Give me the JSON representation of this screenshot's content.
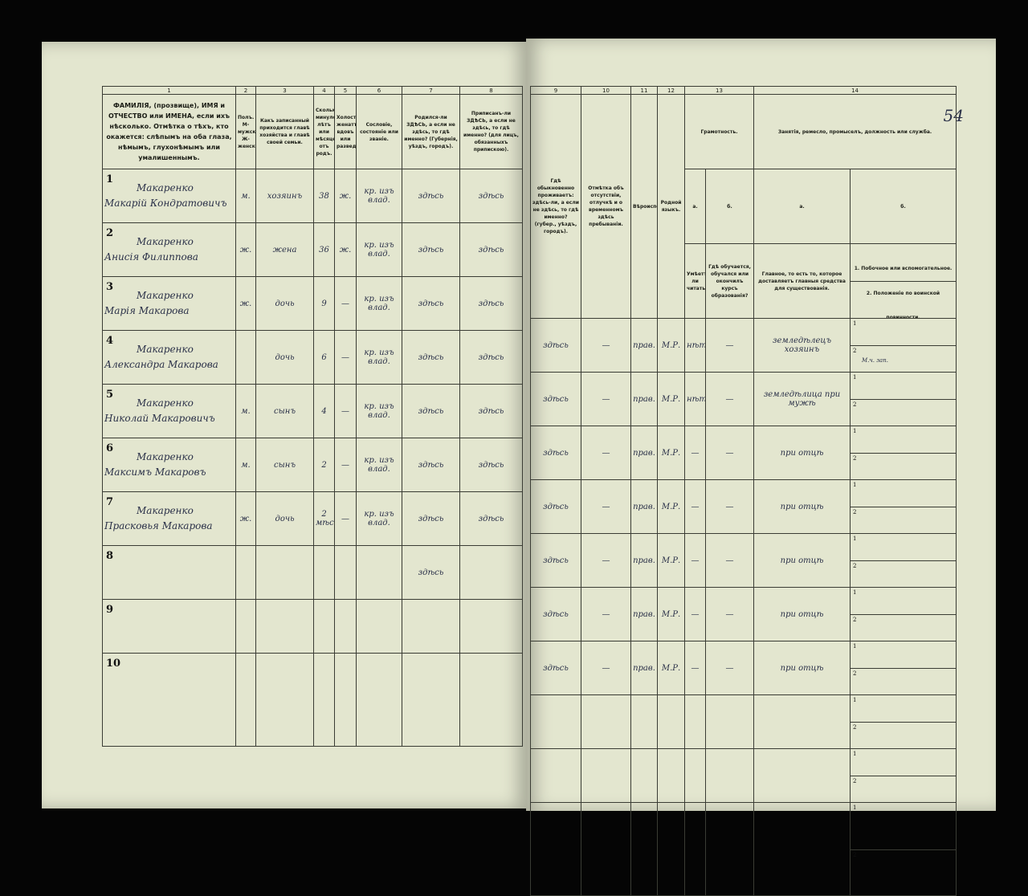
{
  "page_number": "54",
  "left_headers": {
    "numbers": [
      "1",
      "2",
      "3",
      "4",
      "5",
      "6",
      "7",
      "8"
    ],
    "labels": [
      "ФАМИЛІЯ, (прозвище), ИМЯ и ОТЧЕСТВО или ИМЕНА, если ихъ нѣсколько. Отмѣтка о тѣхъ, кто окажется: слѣпымъ на оба глаза, нѣмымъ, глухонѣмымъ или умалишеннымъ.",
      "Полъ. М-мужской. Ж-женскій.",
      "Какъ записанный приходится главѣ хозяйства и главѣ своей семьи.",
      "Сколько минуло лѣтъ или мѣсяцевъ отъ родъ.",
      "Холостъ, женатъ, вдовъ или разведенъ.",
      "Сословіе, состояніе или званіе.",
      "Родился-ли ЗДѢСЬ, а если не здѣсь, то гдѣ именно? (Губернія, уѣздъ, городъ).",
      "Приписанъ-ли ЗДѢСЬ, а если не здѣсь, то гдѣ именно? (для лицъ, обязанныхъ припискою)."
    ]
  },
  "right_headers": {
    "numbers": [
      "9",
      "10",
      "11",
      "12",
      "13",
      "14"
    ],
    "col9": "Гдѣ обыкновенно проживаетъ: здѣсь-ли, а если не здѣсь, то гдѣ именно? (губер., уѣздъ, городъ).",
    "col10": "Отмѣтка объ отсутствіи, отлучкѣ и о временномъ здѣсь пребываніи.",
    "col11": "Вѣроисповѣданіе.",
    "col12": "Родной языкъ.",
    "col13": "Грамотность.",
    "col13a": "а.",
    "col13a_text": "Умѣетъ-ли читать?",
    "col13b": "б.",
    "col13b_text": "Гдѣ обучается, обучался или окончилъ курсъ образованія?",
    "col14": "Занятія, ремесло, промыселъ, должность или служба.",
    "col14a": "а.",
    "col14a_text": "Главное, то есть то, которое доставляетъ главныя средства для существованія.",
    "col14b": "б.",
    "col14b_1": "1. Побочное или вспомогательное.",
    "col14b_2": "2. Положеніе по воинской повинности."
  },
  "rows": [
    {
      "n": "1",
      "surname": "Макаренко",
      "name": "Макарій Кондратовичъ",
      "sex": "м.",
      "relation": "хозяинъ",
      "age": "38",
      "marital": "ж.",
      "estate": "кр. изъ влад.",
      "born": "здѣсь",
      "registered": "здѣсь",
      "resides": "здѣсь",
      "absence": "—",
      "religion": "прав.",
      "language": "М.Р.",
      "literate": "нѣтъ",
      "school": "—",
      "occupation": "земледѣлецъ хозяинъ",
      "side": "",
      "military": "М.ч. зап."
    },
    {
      "n": "2",
      "surname": "Макаренко",
      "name": "Анисія Филиппова",
      "sex": "ж.",
      "relation": "жена",
      "age": "36",
      "marital": "ж.",
      "estate": "кр. изъ влад.",
      "born": "здѣсь",
      "registered": "здѣсь",
      "resides": "здѣсь",
      "absence": "—",
      "religion": "прав.",
      "language": "М.Р.",
      "literate": "нѣтъ",
      "school": "—",
      "occupation": "земледѣлица при мужѣ",
      "side": "",
      "military": ""
    },
    {
      "n": "3",
      "surname": "Макаренко",
      "name": "Марія Макарова",
      "sex": "ж.",
      "relation": "дочь",
      "age": "9",
      "marital": "—",
      "estate": "кр. изъ влад.",
      "born": "здѣсь",
      "registered": "здѣсь",
      "resides": "здѣсь",
      "absence": "—",
      "religion": "прав.",
      "language": "М.Р.",
      "literate": "—",
      "school": "—",
      "occupation": "при отцѣ",
      "side": "",
      "military": ""
    },
    {
      "n": "4",
      "surname": "Макаренко",
      "name": "Александра Макарова",
      "sex": "",
      "relation": "дочь",
      "age": "6",
      "marital": "—",
      "estate": "кр. изъ влад.",
      "born": "здѣсь",
      "registered": "здѣсь",
      "resides": "здѣсь",
      "absence": "—",
      "religion": "прав.",
      "language": "М.Р.",
      "literate": "—",
      "school": "—",
      "occupation": "при отцѣ",
      "side": "",
      "military": ""
    },
    {
      "n": "5",
      "surname": "Макаренко",
      "name": "Николай Макаровичъ",
      "sex": "м.",
      "relation": "сынъ",
      "age": "4",
      "marital": "—",
      "estate": "кр. изъ влад.",
      "born": "здѣсь",
      "registered": "здѣсь",
      "resides": "здѣсь",
      "absence": "—",
      "religion": "прав.",
      "language": "М.Р.",
      "literate": "—",
      "school": "—",
      "occupation": "при отцѣ",
      "side": "",
      "military": ""
    },
    {
      "n": "6",
      "surname": "Макаренко",
      "name": "Максимъ Макаровъ",
      "sex": "м.",
      "relation": "сынъ",
      "age": "2",
      "marital": "—",
      "estate": "кр. изъ влад.",
      "born": "здѣсь",
      "registered": "здѣсь",
      "resides": "здѣсь",
      "absence": "—",
      "religion": "прав.",
      "language": "М.Р.",
      "literate": "—",
      "school": "—",
      "occupation": "при отцѣ",
      "side": "",
      "military": ""
    },
    {
      "n": "7",
      "surname": "Макаренко",
      "name": "Прасковья Макарова",
      "sex": "ж.",
      "relation": "дочь",
      "age": "2 мѣс.",
      "marital": "—",
      "estate": "кр. изъ влад.",
      "born": "здѣсь",
      "registered": "здѣсь",
      "resides": "здѣсь",
      "absence": "—",
      "religion": "прав.",
      "language": "М.Р.",
      "literate": "—",
      "school": "—",
      "occupation": "при отцѣ",
      "side": "",
      "military": ""
    },
    {
      "n": "8",
      "surname": "",
      "name": "",
      "sex": "",
      "relation": "",
      "age": "",
      "marital": "",
      "estate": "",
      "born": "здѣсь",
      "registered": "",
      "resides": "",
      "absence": "",
      "religion": "",
      "language": "",
      "literate": "",
      "school": "",
      "occupation": "",
      "side": "",
      "military": ""
    },
    {
      "n": "9",
      "surname": "",
      "name": "",
      "sex": "",
      "relation": "",
      "age": "",
      "marital": "",
      "estate": "",
      "born": "",
      "registered": "",
      "resides": "",
      "absence": "",
      "religion": "",
      "language": "",
      "literate": "",
      "school": "",
      "occupation": "",
      "side": "",
      "military": ""
    },
    {
      "n": "10",
      "surname": "",
      "name": "",
      "sex": "",
      "relation": "",
      "age": "",
      "marital": "",
      "estate": "",
      "born": "",
      "registered": "",
      "resides": "",
      "absence": "",
      "religion": "",
      "language": "",
      "literate": "",
      "school": "",
      "occupation": "",
      "side": "",
      "military": ""
    }
  ],
  "sub_labels": [
    "1",
    "2"
  ]
}
